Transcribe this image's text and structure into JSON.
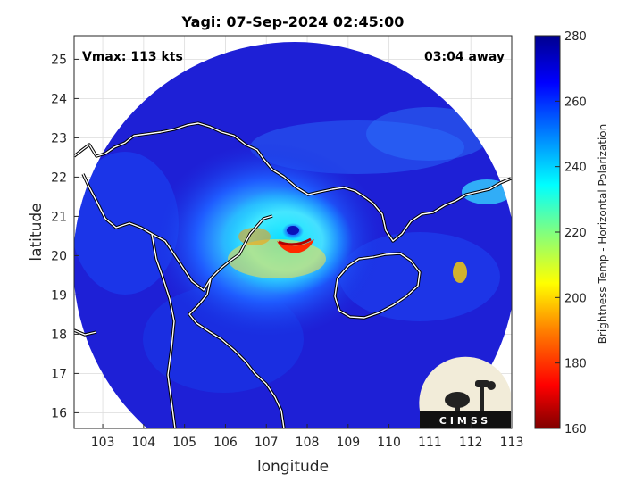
{
  "title": "Yagi: 07-Sep-2024 02:45:00",
  "vmax_label": "Vmax: 113 kts",
  "away_label": "03:04 away",
  "logo_text": "CIMSS",
  "chart_data": {
    "type": "heatmap",
    "xlabel": "longitude",
    "ylabel": "latitude",
    "xlim": [
      102.3,
      113
    ],
    "ylim": [
      15.6,
      25.6
    ],
    "xticks": [
      103,
      104,
      105,
      106,
      107,
      108,
      109,
      110,
      111,
      112,
      113
    ],
    "yticks": [
      16,
      17,
      18,
      19,
      20,
      21,
      22,
      23,
      24,
      25
    ],
    "grid": true,
    "colorbar": {
      "label": "Brightness Temp - Horizontal Polarization",
      "min": 160,
      "max": 280,
      "ticks": [
        160,
        180,
        200,
        220,
        240,
        260,
        280
      ],
      "colormap": [
        "#800000",
        "#ff0000",
        "#ff8000",
        "#ffff00",
        "#80ff80",
        "#00ffff",
        "#0080ff",
        "#0000ff",
        "#00008f"
      ]
    },
    "storm_center": {
      "lon": 107.5,
      "lat": 20.4
    }
  }
}
